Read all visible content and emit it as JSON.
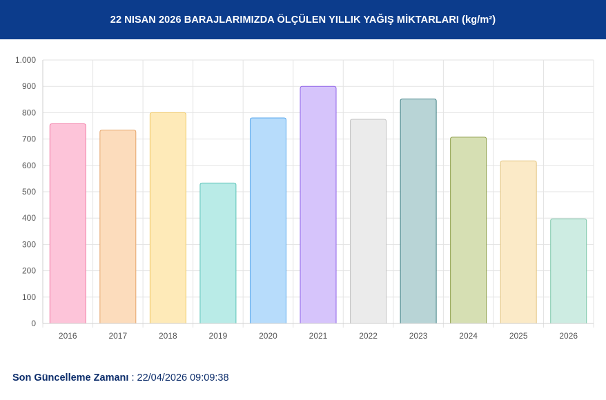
{
  "header": {
    "title": "22 NISAN 2026 BARAJLARIMIZDA ÖLÇÜLEN YILLIK YAĞIŞ MİKTARLARI (kg/m²)"
  },
  "footer": {
    "label": "Son Güncelleme Zamanı",
    "separator": " : ",
    "value": "22/04/2026 09:09:38"
  },
  "colors": {
    "header_bg": "#0c3c8c",
    "footer_text": "#0c2d6b"
  },
  "chart_data": {
    "type": "bar",
    "title": "22 NISAN 2026 BARAJLARIMIZDA ÖLÇÜLEN YILLIK YAĞIŞ MİKTARLARI (kg/m²)",
    "xlabel": "",
    "ylabel": "",
    "categories": [
      "2016",
      "2017",
      "2018",
      "2019",
      "2020",
      "2021",
      "2022",
      "2023",
      "2024",
      "2025",
      "2026"
    ],
    "values": [
      758,
      734,
      800,
      533,
      780,
      900,
      775,
      852,
      707,
      617,
      397
    ],
    "ylim": [
      0,
      1000
    ],
    "yticks": [
      0,
      100,
      200,
      300,
      400,
      500,
      600,
      700,
      800,
      900,
      1000
    ],
    "ytick_labels": [
      "0",
      "100",
      "200",
      "300",
      "400",
      "500",
      "600",
      "700",
      "800",
      "900",
      "1.000"
    ],
    "grid": true,
    "legend": "none",
    "bar_colors": [
      {
        "fill": "#fdc4d9",
        "stroke": "#f27ba6"
      },
      {
        "fill": "#fcdcbc",
        "stroke": "#e5a46a"
      },
      {
        "fill": "#feeab8",
        "stroke": "#f0c865"
      },
      {
        "fill": "#b9ebe7",
        "stroke": "#5cc3b8"
      },
      {
        "fill": "#b7dcfb",
        "stroke": "#5aa9ee"
      },
      {
        "fill": "#d6c4fb",
        "stroke": "#8f62e8"
      },
      {
        "fill": "#ebebeb",
        "stroke": "#c2c2c2"
      },
      {
        "fill": "#b8d4d6",
        "stroke": "#3e7f84"
      },
      {
        "fill": "#d6dfb3",
        "stroke": "#8e9f4a"
      },
      {
        "fill": "#fbeac7",
        "stroke": "#e3c683"
      },
      {
        "fill": "#cdece2",
        "stroke": "#7cc7aa"
      }
    ]
  }
}
